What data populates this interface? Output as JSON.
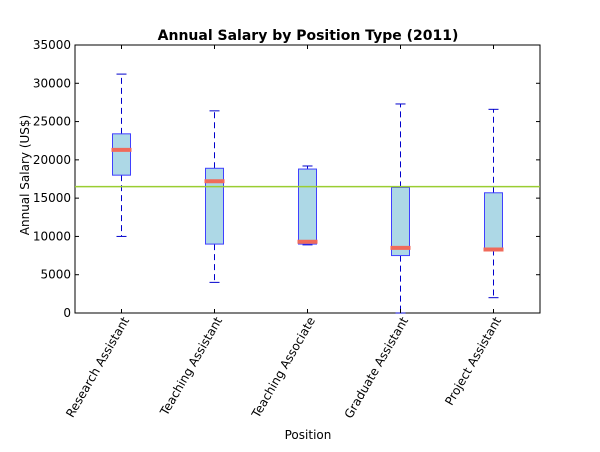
{
  "chart_data": {
    "type": "box",
    "title": "Annual Salary by Position Type (2011)",
    "xlabel": "Position",
    "ylabel": "Annual Salary (US$)",
    "ylim": [
      0,
      35000
    ],
    "yticks": [
      0,
      5000,
      10000,
      15000,
      20000,
      25000,
      30000,
      35000
    ],
    "yticklabels": [
      "0",
      "5000",
      "10000",
      "15000",
      "20000",
      "25000",
      "30000",
      "35000"
    ],
    "categories": [
      "Research Assistant",
      "Teaching Assistant",
      "Teaching Associate",
      "Graduate Assistant",
      "Project Assistant"
    ],
    "boxes": [
      {
        "whisker_low": 10000,
        "q1": 18000,
        "median": 21300,
        "q3": 23400,
        "whisker_high": 31200
      },
      {
        "whisker_low": 4000,
        "q1": 9000,
        "median": 17200,
        "q3": 18900,
        "whisker_high": 26400
      },
      {
        "whisker_low": 8900,
        "q1": 9000,
        "median": 9300,
        "q3": 18800,
        "whisker_high": 19200
      },
      {
        "whisker_low": 0,
        "q1": 7500,
        "median": 8500,
        "q3": 16400,
        "whisker_high": 27300
      },
      {
        "whisker_low": 2000,
        "q1": 8300,
        "median": 8300,
        "q3": 15700,
        "whisker_high": 26600
      }
    ],
    "reference_line": {
      "y": 16500
    },
    "grid": false,
    "colors": {
      "box_fill": "#add8e6",
      "box_edge": "#4040ff",
      "whisker": "#0000cc",
      "median": "#f06a5a",
      "reference_line": "#9acd32"
    }
  }
}
